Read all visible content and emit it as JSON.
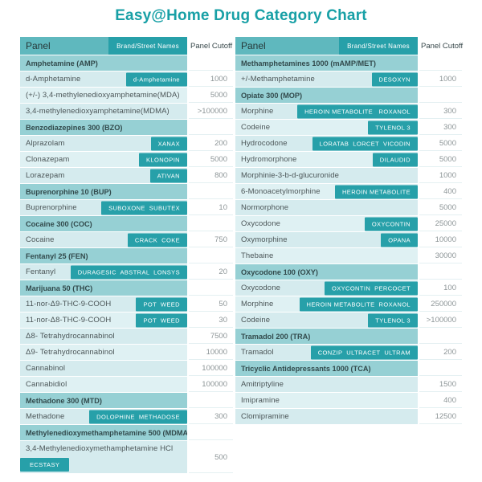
{
  "title": "Easy@Home Drug Category Chart",
  "colors": {
    "title_text": "#18a0a6",
    "header_bg": "#5fb8be",
    "category_row_bg": "#96d0d4",
    "data_row_bg": "#d5ebee",
    "data_row_alt_bg": "#dff1f3",
    "badge_bg": "#27a0a9",
    "badge_text": "#ffffff",
    "cutoff_bg": "#ffffff",
    "cutoff_text": "#8d9597",
    "name_text": "#4b5557"
  },
  "chart_data": [
    {
      "type": "table",
      "position": "left",
      "headers": {
        "panel": "Panel",
        "brand": "Brand/Street Names",
        "cutoff": "Panel Cutoff"
      },
      "rows": [
        {
          "type": "category",
          "name": "Amphetamine (AMP)"
        },
        {
          "type": "data",
          "name": "d-Amphetamine",
          "brand": "d-Amphetamine",
          "cutoff": "1000"
        },
        {
          "type": "data",
          "name": "(+/-) 3,4-methylenedioxyamphetamine(MDA)",
          "cutoff": "5000"
        },
        {
          "type": "data",
          "name": "3,4-methylenedioxyamphetamine(MDMA)",
          "cutoff": ">100000"
        },
        {
          "type": "category",
          "name": "Benzodiazepines 300 (BZO)"
        },
        {
          "type": "data",
          "name": "Alprazolam",
          "brand": "XANAX",
          "cutoff": "200"
        },
        {
          "type": "data",
          "name": "Clonazepam",
          "brand": "KLONOPIN",
          "cutoff": "5000"
        },
        {
          "type": "data",
          "name": "Lorazepam",
          "brand": "ATIVAN",
          "cutoff": "800"
        },
        {
          "type": "category",
          "name": "Buprenorphine 10 (BUP)"
        },
        {
          "type": "data",
          "name": "Buprenorphine",
          "brand": "SUBOXONE  SUBUTEX",
          "cutoff": "10"
        },
        {
          "type": "category",
          "name": "Cocaine 300 (COC)"
        },
        {
          "type": "data",
          "name": "Cocaine",
          "brand": "CRACK  COKE",
          "cutoff": "750"
        },
        {
          "type": "category",
          "name": "Fentanyl 25 (FEN)"
        },
        {
          "type": "data",
          "name": "Fentanyl",
          "brand": "DURAGESIC  ABSTRAL  LONSYS",
          "cutoff": "20"
        },
        {
          "type": "category",
          "name": "Marijuana 50 (THC)"
        },
        {
          "type": "data",
          "name": "11-nor-Δ9-THC-9-COOH",
          "brand": "POT  WEED",
          "cutoff": "50"
        },
        {
          "type": "data",
          "name": "11-nor-Δ8-THC-9-COOH",
          "brand": "POT  WEED",
          "cutoff": "30"
        },
        {
          "type": "data",
          "name": "Δ8- Tetrahydrocannabinol",
          "cutoff": "7500"
        },
        {
          "type": "data",
          "name": "Δ9- Tetrahydrocannabinol",
          "cutoff": "10000"
        },
        {
          "type": "data",
          "name": "Cannabinol",
          "cutoff": "100000"
        },
        {
          "type": "data",
          "name": "Cannabidiol",
          "cutoff": "100000"
        },
        {
          "type": "category",
          "name": "Methadone 300 (MTD)"
        },
        {
          "type": "data",
          "name": "Methadone",
          "brand": "DOLOPHINE  METHADOSE",
          "cutoff": "300"
        },
        {
          "type": "category",
          "name": "Methylenedioxymethamphetamine 500 (MDMA)"
        },
        {
          "type": "data",
          "name": "3,4-Methylenedioxymethamphetamine HCl",
          "brand": "ECSTASY",
          "cutoff": "500",
          "tall": true
        }
      ]
    },
    {
      "type": "table",
      "position": "right",
      "headers": {
        "panel": "Panel",
        "brand": "Brand/Street Names",
        "cutoff": "Panel Cutoff"
      },
      "rows": [
        {
          "type": "category",
          "name": "Methamphetamines 1000 (mAMP/MET)"
        },
        {
          "type": "data",
          "name": "+/-Methamphetamine",
          "brand": "DESOXYN",
          "cutoff": "1000"
        },
        {
          "type": "category",
          "name": "Opiate 300 (MOP)"
        },
        {
          "type": "data",
          "name": "Morphine",
          "brand": "HEROIN METABOLITE   ROXANOL",
          "cutoff": "300"
        },
        {
          "type": "data",
          "name": "Codeine",
          "brand": "TYLENOL 3",
          "cutoff": "300"
        },
        {
          "type": "data",
          "name": "Hydrocodone",
          "brand": "LORATAB  LORCET  VICODIN",
          "cutoff": "5000"
        },
        {
          "type": "data",
          "name": "Hydromorphone",
          "brand": "DILAUDID",
          "cutoff": "5000"
        },
        {
          "type": "data",
          "name": "Morphinie-3-b-d-glucuronide",
          "cutoff": "1000"
        },
        {
          "type": "data",
          "name": "6-Monoacetylmorphine",
          "brand": "HEROIN METABOLITE",
          "cutoff": "400"
        },
        {
          "type": "data",
          "name": "Normorphone",
          "cutoff": "5000"
        },
        {
          "type": "data",
          "name": "Oxycodone",
          "brand": "OXYCONTIN",
          "cutoff": "25000"
        },
        {
          "type": "data",
          "name": "Oxymorphine",
          "brand": "OPANA",
          "cutoff": "10000"
        },
        {
          "type": "data",
          "name": "Thebaine",
          "cutoff": "30000"
        },
        {
          "type": "category",
          "name": "Oxycodone 100 (OXY)"
        },
        {
          "type": "data",
          "name": "Oxycodone",
          "brand": "OXYCONTIN  PERCOCET",
          "cutoff": "100"
        },
        {
          "type": "data",
          "name": "Morphine",
          "brand": "HEROIN METABOLITE  ROXANOL",
          "cutoff": "250000"
        },
        {
          "type": "data",
          "name": "Codeine",
          "brand": "TYLENOL 3",
          "cutoff": ">100000"
        },
        {
          "type": "category",
          "name": "Tramadol 200 (TRA)"
        },
        {
          "type": "data",
          "name": "Tramadol",
          "brand": "CONZIP  ULTRACET  ULTRAM",
          "cutoff": "200"
        },
        {
          "type": "category",
          "name": "Tricyclic Antidepressants 1000 (TCA)"
        },
        {
          "type": "data",
          "name": "Amitriptyline",
          "cutoff": "1500"
        },
        {
          "type": "data",
          "name": "Imipramine",
          "cutoff": "400"
        },
        {
          "type": "data",
          "name": "Clomipramine",
          "cutoff": "12500"
        }
      ]
    }
  ]
}
